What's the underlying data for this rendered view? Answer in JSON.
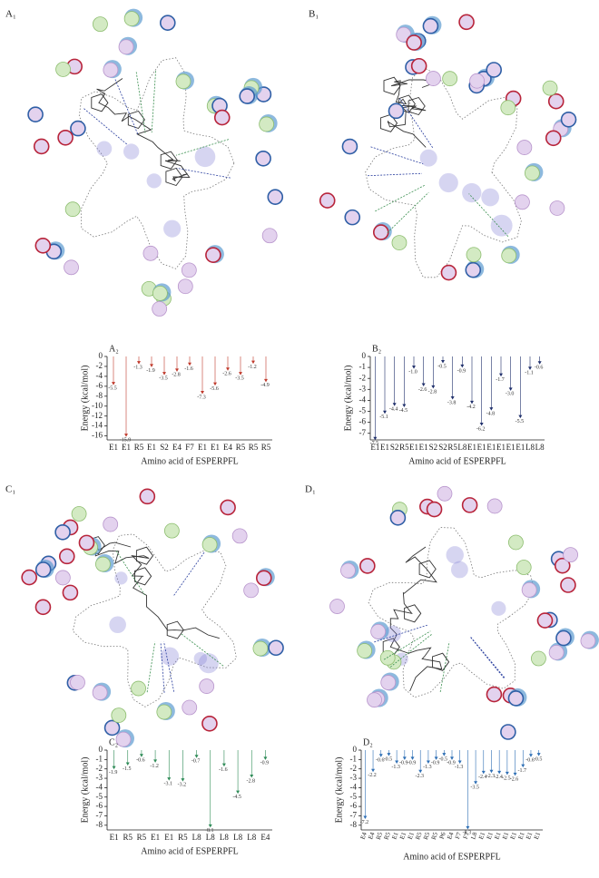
{
  "panels": [
    "A₁",
    "B₁",
    "C₁",
    "D₁"
  ],
  "chart_data": [
    {
      "type": "lollipop",
      "title": "A₂",
      "ylabel": "Energy (kcal/mol)",
      "xlabel": "Amino acid of ESPERPFL",
      "categories": [
        "E1",
        "E1",
        "R5",
        "E1",
        "S2",
        "E4",
        "F7",
        "E1",
        "E1",
        "E4",
        "R5",
        "R5",
        "R5"
      ],
      "values": [
        -5.5,
        -15.9,
        -1.3,
        -1.9,
        -3.5,
        -2.8,
        -1.6,
        -7.3,
        -5.6,
        -2.6,
        -3.5,
        -1.2,
        -4.9
      ],
      "value_labels": [
        "-5.5",
        "-15.9",
        "-1.3",
        "-1.9",
        "-3.5",
        "-2.8",
        "-1.6",
        "-7.3",
        "-5.6",
        "-2.6",
        "-3.5",
        "-1.2",
        "-4.9"
      ],
      "color": "#c0392b",
      "ylim": [
        -16.8,
        0
      ],
      "yticks": [
        0,
        -2,
        -4,
        -6,
        -8,
        -10,
        -12,
        -14,
        -16
      ]
    },
    {
      "type": "lollipop",
      "title": "B₂",
      "ylabel": "Energy (kcal/mol)",
      "xlabel": "Amino acid of ESPERPFL",
      "categories": [
        "E1",
        "E1",
        "S2",
        "R5",
        "E1",
        "E1",
        "S2",
        "S2",
        "R5",
        "L8",
        "E1",
        "E1",
        "E1",
        "E1",
        "E1",
        "E1",
        "L8",
        "L8"
      ],
      "values": [
        -7.5,
        -5.1,
        -4.4,
        -4.5,
        -1.0,
        -2.6,
        -2.8,
        -0.5,
        -3.8,
        -0.9,
        -4.2,
        -6.2,
        -4.8,
        -1.7,
        -3.0,
        -5.5,
        -1.1,
        -0.6
      ],
      "value_labels": [
        "-7.5",
        "-5.1",
        "-4.4",
        "-4.5",
        "-1.0",
        "-2.6",
        "-2.8",
        "-0.5",
        "-3.8",
        "-0.9",
        "-4.2",
        "-6.2",
        "-4.8",
        "-1.7",
        "-3.0",
        "-5.5",
        "-1.1",
        "-0.6"
      ],
      "color": "#1f2f6b",
      "ylim": [
        -7.6,
        0
      ],
      "yticks": [
        0,
        -1,
        -2,
        -3,
        -4,
        -5,
        -6,
        -7
      ]
    },
    {
      "type": "lollipop",
      "title": "C₂",
      "ylabel": "Energy (kcal/mol)",
      "xlabel": "Amino acid of ESPERPFL",
      "categories": [
        "E1",
        "R5",
        "R5",
        "E1",
        "E1",
        "R5",
        "L8",
        "L8",
        "L8",
        "L8",
        "L8",
        "E4"
      ],
      "values": [
        -1.9,
        -1.5,
        -0.6,
        -1.2,
        -3.1,
        -3.2,
        -0.7,
        -8.1,
        -1.6,
        -4.5,
        -2.8,
        -0.9
      ],
      "value_labels": [
        "-1.9",
        "-1.5",
        "-0.6",
        "-1.2",
        "-3.1",
        "-3.2",
        "-0.7",
        "-8.1",
        "-1.6",
        "-4.5",
        "-2.8",
        "-0.9"
      ],
      "color": "#2e8b57",
      "ylim": [
        -8.5,
        0
      ],
      "yticks": [
        0,
        -1,
        -2,
        -3,
        -4,
        -5,
        -6,
        -7,
        -8
      ]
    },
    {
      "type": "lollipop",
      "title": "D₂",
      "ylabel": "Energy (kcal/mol)",
      "xlabel": "Amino acid of ESPERPFL",
      "rotate_labels": true,
      "categories": [
        "E4",
        "E4",
        "R5",
        "R5",
        "E1",
        "E1",
        "E1",
        "R5",
        "R5",
        "R5",
        "P6",
        "E4",
        "F7",
        "F7",
        "L8",
        "E1",
        "E1",
        "E1",
        "E1",
        "E1",
        "E1",
        "E1",
        "E1"
      ],
      "values": [
        -7.2,
        -2.2,
        -0.6,
        -0.5,
        -1.3,
        -0.9,
        -0.9,
        -2.3,
        -1.3,
        -0.9,
        -0.5,
        -0.9,
        -1.3,
        -8.3,
        -3.5,
        -2.4,
        -2.3,
        -2.4,
        -2.5,
        -2.6,
        -1.7,
        -0.6,
        -0.5
      ],
      "value_labels": [
        "-7.2",
        "-2.2",
        "-0.6",
        "-0.5",
        "-1.3",
        "-0.9",
        "-0.9",
        "-2.3",
        "-1.3",
        "-0.9",
        "-0.5",
        "-0.9",
        "-1.3",
        "-8.3",
        "-3.5",
        "-2.4",
        "-2.3",
        "-2.4",
        "-2.5",
        "-2.6",
        "-1.7",
        "-0.6",
        "-0.5"
      ],
      "color": "#2e6fb5",
      "ylim": [
        -8.5,
        0
      ],
      "yticks": [
        0,
        -1,
        -2,
        -3,
        -4,
        -5,
        -6,
        -7,
        -8
      ]
    }
  ]
}
